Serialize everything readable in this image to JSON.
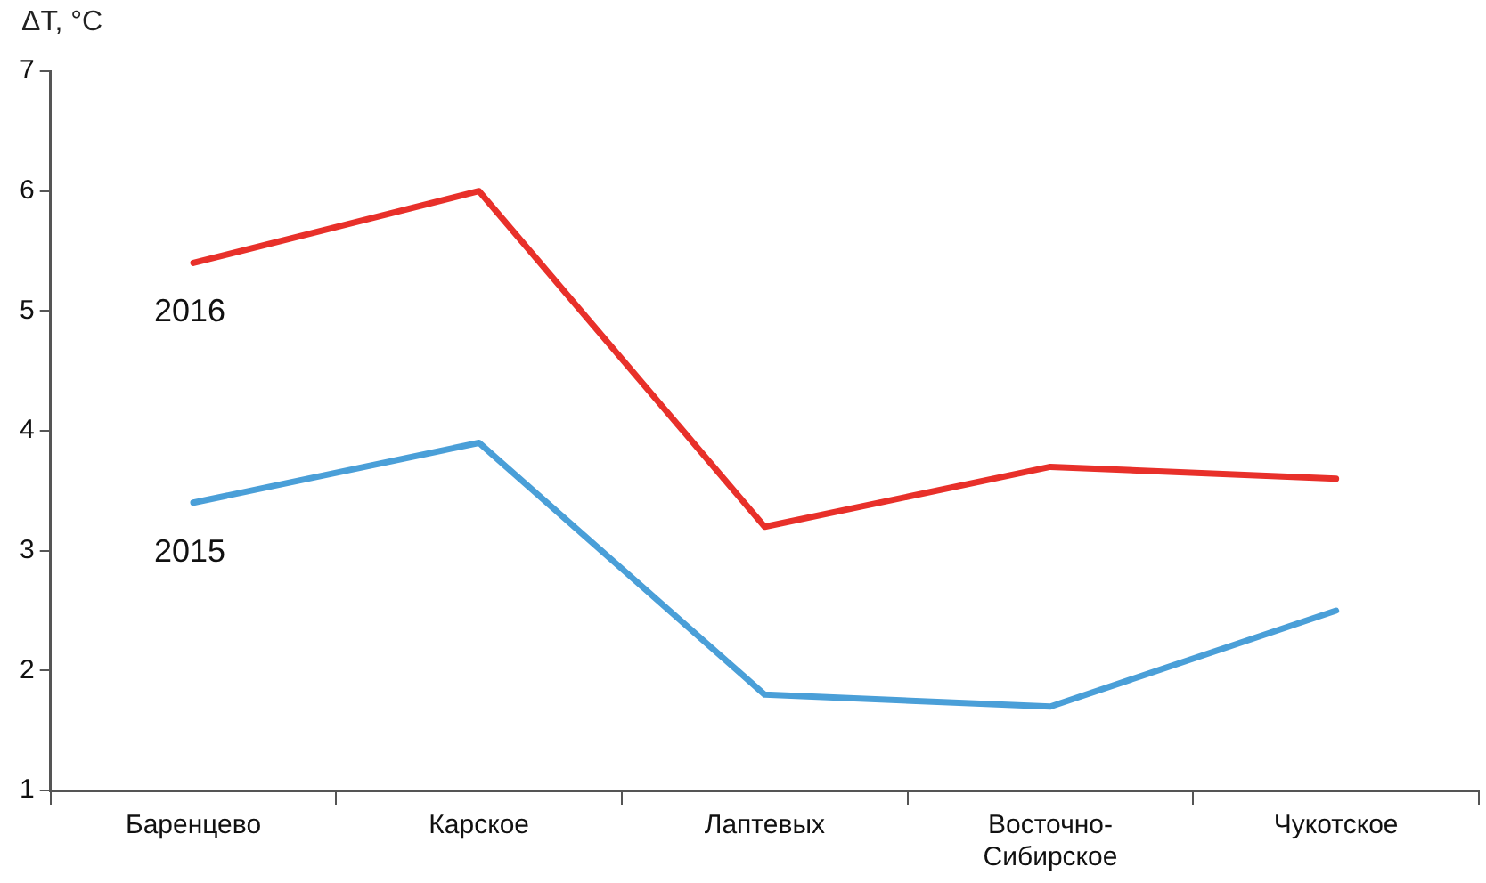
{
  "chart_data": {
    "type": "line",
    "ylabel": "ΔT, °C",
    "categories": [
      "Баренцево",
      "Карское",
      "Лаптевых",
      "Восточно-Сибирское",
      "Чукотское"
    ],
    "series": [
      {
        "name": "2016",
        "color": "#e8302a",
        "values": [
          5.4,
          6.0,
          3.2,
          3.7,
          3.6
        ]
      },
      {
        "name": "2015",
        "color": "#4a9fd8",
        "values": [
          3.4,
          3.9,
          1.8,
          1.7,
          2.5
        ]
      }
    ],
    "ylim": [
      1,
      7
    ],
    "yticks": [
      1,
      2,
      3,
      4,
      5,
      6,
      7
    ],
    "grid": false,
    "legend": false,
    "marker": "none",
    "line_style": "solid"
  }
}
